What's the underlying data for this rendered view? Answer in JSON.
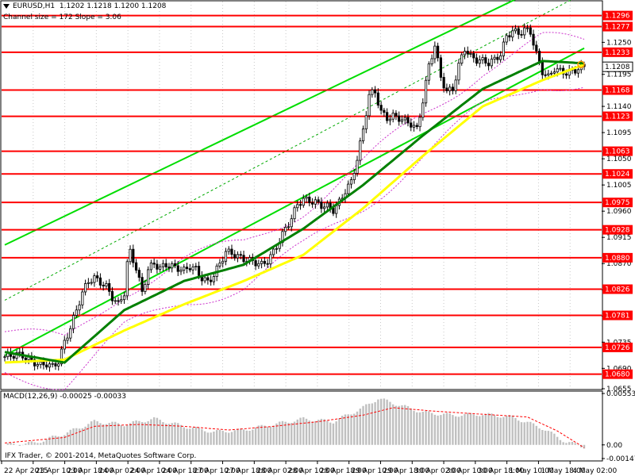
{
  "header": {
    "symbol": "EURUSD,H1",
    "ohlc": "1.1202 1.1218 1.1200 1.1208",
    "channel": "Channel size = 172 Slope = 3.06"
  },
  "macd_label": "MACD(12,26,9) -0.00025 -0.00033",
  "copyright": "IFX Trader, © 2001-2014, MetaQuotes Software Corp.",
  "colors": {
    "candles": "#000000",
    "level_lines": "#ff0000",
    "level_label_bg": "#ff0000",
    "level_label_text": "#ffffff",
    "ma_fast": "#008000",
    "ma_slow": "#ffff00",
    "channel": "#00dd00",
    "channel_mid": "#00aa00",
    "envelope": "#cc33cc",
    "macd_hist": "#c0c0c0",
    "macd_signal": "#ff0000",
    "current_price_bg": "#000000"
  },
  "chart_data": {
    "type": "candlestick",
    "symbol": "EURUSD",
    "timeframe": "H1",
    "y_ticks": [
      "1.1250",
      "1.1195",
      "1.1140",
      "1.1095",
      "1.1050",
      "1.1005",
      "1.0960",
      "1.0915",
      "1.0870",
      "1.0825",
      "1.0780",
      "1.0735",
      "1.0690",
      "1.0655"
    ],
    "price_levels": [
      "1.1296",
      "1.1277",
      "1.1233",
      "1.1168",
      "1.1123",
      "1.1063",
      "1.1024",
      "1.0975",
      "1.0928",
      "1.0880",
      "1.0826",
      "1.0781",
      "1.0726",
      "1.0680"
    ],
    "current_price": "1.1208",
    "x_labels": [
      "22 Apr 2015",
      "23 Apr 10:00",
      "23 Apr 18:00",
      "24 Apr 02:00",
      "24 Apr 10:00",
      "24 Apr 18:00",
      "27 Apr 10:00",
      "27 Apr 18:00",
      "28 Apr 02:00",
      "28 Apr 10:00",
      "28 Apr 18:00",
      "29 Apr 10:00",
      "29 Apr 18:00",
      "30 Apr 02:00",
      "30 Apr 10:00",
      "30 Apr 18:00",
      "1 May 10:00",
      "1 May 18:00",
      "4 May 02:00"
    ],
    "ylim": [
      1.0655,
      1.132
    ],
    "close_path": [
      [
        0,
        1.071
      ],
      [
        2,
        1.0712
      ],
      [
        4,
        1.0714
      ],
      [
        6,
        1.0712
      ],
      [
        8,
        1.0705
      ],
      [
        10,
        1.07
      ],
      [
        12,
        1.0695
      ],
      [
        14,
        1.0698
      ],
      [
        16,
        1.0693
      ],
      [
        18,
        1.0702
      ],
      [
        20,
        1.0735
      ],
      [
        22,
        1.076
      ],
      [
        24,
        1.079
      ],
      [
        26,
        1.082
      ],
      [
        28,
        1.084
      ],
      [
        30,
        1.0845
      ],
      [
        32,
        1.0838
      ],
      [
        34,
        1.083
      ],
      [
        36,
        1.0812
      ],
      [
        38,
        1.08
      ],
      [
        40,
        1.082
      ],
      [
        41,
        1.087
      ],
      [
        42,
        1.089
      ],
      [
        44,
        1.0862
      ],
      [
        46,
        1.082
      ],
      [
        48,
        1.086
      ],
      [
        50,
        1.087
      ],
      [
        52,
        1.0862
      ],
      [
        54,
        1.0868
      ],
      [
        56,
        1.0865
      ],
      [
        58,
        1.0862
      ],
      [
        60,
        1.0858
      ],
      [
        62,
        1.0865
      ],
      [
        64,
        1.086
      ],
      [
        66,
        1.0845
      ],
      [
        68,
        1.0838
      ],
      [
        70,
        1.085
      ],
      [
        72,
        1.087
      ],
      [
        74,
        1.089
      ],
      [
        76,
        1.0888
      ],
      [
        78,
        1.0882
      ],
      [
        80,
        1.0878
      ],
      [
        82,
        1.0875
      ],
      [
        84,
        1.0872
      ],
      [
        86,
        1.0868
      ],
      [
        88,
        1.0875
      ],
      [
        90,
        1.089
      ],
      [
        92,
        1.091
      ],
      [
        94,
        1.093
      ],
      [
        96,
        1.0948
      ],
      [
        98,
        1.0972
      ],
      [
        100,
        1.098
      ],
      [
        102,
        1.0978
      ],
      [
        104,
        1.0975
      ],
      [
        106,
        1.097
      ],
      [
        108,
        1.0968
      ],
      [
        110,
        1.0962
      ],
      [
        112,
        1.0975
      ],
      [
        114,
        1.0995
      ],
      [
        116,
        1.101
      ],
      [
        118,
        1.105
      ],
      [
        120,
        1.11
      ],
      [
        122,
        1.116
      ],
      [
        124,
        1.1165
      ],
      [
        126,
        1.113
      ],
      [
        128,
        1.112
      ],
      [
        130,
        1.1123
      ],
      [
        132,
        1.112
      ],
      [
        134,
        1.1115
      ],
      [
        136,
        1.111
      ],
      [
        138,
        1.11
      ],
      [
        140,
        1.115
      ],
      [
        142,
        1.121
      ],
      [
        144,
        1.1245
      ],
      [
        146,
        1.119
      ],
      [
        148,
        1.1165
      ],
      [
        150,
        1.117
      ],
      [
        152,
        1.121
      ],
      [
        154,
        1.124
      ],
      [
        156,
        1.1225
      ],
      [
        158,
        1.122
      ],
      [
        160,
        1.1218
      ],
      [
        162,
        1.1215
      ],
      [
        164,
        1.122
      ],
      [
        166,
        1.123
      ],
      [
        168,
        1.126
      ],
      [
        170,
        1.127
      ],
      [
        172,
        1.1265
      ],
      [
        174,
        1.1272
      ],
      [
        176,
        1.1268
      ],
      [
        178,
        1.123
      ],
      [
        180,
        1.12
      ],
      [
        182,
        1.119
      ],
      [
        184,
        1.1205
      ],
      [
        186,
        1.12
      ],
      [
        188,
        1.1198
      ],
      [
        190,
        1.12
      ],
      [
        192,
        1.1205
      ],
      [
        194,
        1.1208
      ]
    ],
    "ma_fast": [
      [
        0,
        1.0718
      ],
      [
        20,
        1.07
      ],
      [
        40,
        1.079
      ],
      [
        60,
        1.084
      ],
      [
        80,
        1.0868
      ],
      [
        100,
        1.093
      ],
      [
        120,
        1.1005
      ],
      [
        140,
        1.109
      ],
      [
        160,
        1.117
      ],
      [
        180,
        1.1218
      ],
      [
        194,
        1.1214
      ]
    ],
    "ma_slow": [
      [
        0,
        1.07
      ],
      [
        20,
        1.0705
      ],
      [
        40,
        1.0755
      ],
      [
        60,
        1.08
      ],
      [
        80,
        1.084
      ],
      [
        100,
        1.0885
      ],
      [
        120,
        1.0965
      ],
      [
        140,
        1.1055
      ],
      [
        160,
        1.114
      ],
      [
        180,
        1.1185
      ],
      [
        194,
        1.1212
      ]
    ],
    "macd_ticks": [
      "0.00553",
      "0.00",
      "-0.00147"
    ],
    "macd_hist": [
      [
        0,
        0.0
      ],
      [
        10,
        0.0002
      ],
      [
        20,
        0.0012
      ],
      [
        30,
        0.0025
      ],
      [
        40,
        0.0022
      ],
      [
        50,
        0.0028
      ],
      [
        60,
        0.002
      ],
      [
        70,
        0.0014
      ],
      [
        80,
        0.0016
      ],
      [
        90,
        0.0022
      ],
      [
        100,
        0.0028
      ],
      [
        110,
        0.0025
      ],
      [
        120,
        0.004
      ],
      [
        125,
        0.005
      ],
      [
        130,
        0.0045
      ],
      [
        140,
        0.0035
      ],
      [
        150,
        0.0032
      ],
      [
        160,
        0.0033
      ],
      [
        170,
        0.003
      ],
      [
        180,
        0.0018
      ],
      [
        188,
        0.0003
      ],
      [
        194,
        -0.0002
      ]
    ],
    "macd_signal": [
      [
        0,
        0.0002
      ],
      [
        20,
        0.0008
      ],
      [
        30,
        0.002
      ],
      [
        45,
        0.0022
      ],
      [
        60,
        0.002
      ],
      [
        75,
        0.0016
      ],
      [
        90,
        0.002
      ],
      [
        105,
        0.0025
      ],
      [
        120,
        0.0032
      ],
      [
        130,
        0.004
      ],
      [
        145,
        0.0036
      ],
      [
        160,
        0.0033
      ],
      [
        175,
        0.003
      ],
      [
        185,
        0.0015
      ],
      [
        194,
        -0.0003
      ]
    ]
  }
}
